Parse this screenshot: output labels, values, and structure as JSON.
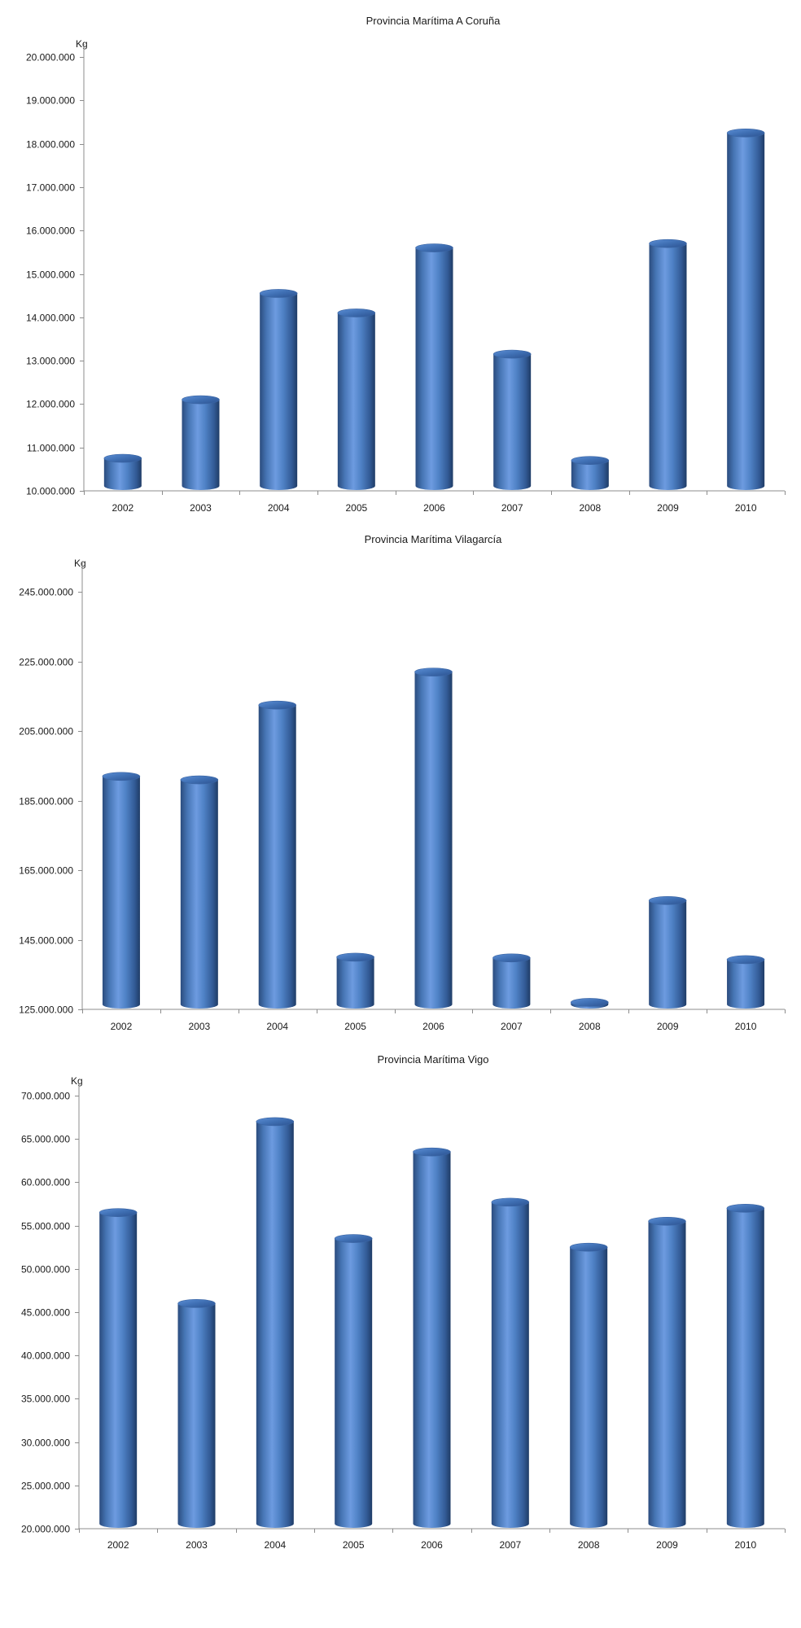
{
  "chart_data": [
    {
      "type": "bar",
      "style": "3d-cylinder",
      "title": "Provincia Marítima  A Coruña",
      "unit": "Kg",
      "xlabel": "",
      "ylabel": "",
      "categories": [
        "2002",
        "2003",
        "2004",
        "2005",
        "2006",
        "2007",
        "2008",
        "2009",
        "2010"
      ],
      "values": [
        10750000,
        12100000,
        14550000,
        14100000,
        15600000,
        13150000,
        10700000,
        15700000,
        18250000
      ],
      "ylim": [
        10000000,
        20000000
      ],
      "ytick_labels": [
        "10.000.000",
        "11.000.000",
        "12.000.000",
        "13.000.000",
        "14.000.000",
        "15.000.000",
        "16.000.000",
        "17.000.000",
        "18.000.000",
        "19.000.000",
        "20.000.000"
      ],
      "grid": false,
      "legend": "none",
      "bar_color": "#4a7ebb"
    },
    {
      "type": "bar",
      "style": "3d-cylinder",
      "title": "Provincia Marítima  Vilagarcía",
      "unit": "Kg",
      "xlabel": "",
      "ylabel": "",
      "categories": [
        "2002",
        "2003",
        "2004",
        "2005",
        "2006",
        "2007",
        "2008",
        "2009",
        "2010"
      ],
      "values": [
        192000000,
        191000000,
        212500000,
        140000000,
        222000000,
        139800000,
        127000000,
        156300000,
        139300000
      ],
      "ylim": [
        125000000,
        250000000
      ],
      "ytick_labels": [
        "125.000.000",
        "145.000.000",
        "165.000.000",
        "185.000.000",
        "205.000.000",
        "225.000.000",
        "245.000.000"
      ],
      "grid": false,
      "legend": "none",
      "bar_color": "#4a7ebb"
    },
    {
      "type": "bar",
      "style": "3d-cylinder",
      "title": "Provincia Marítima  Vigo",
      "unit": "Kg",
      "xlabel": "",
      "ylabel": "",
      "categories": [
        "2002",
        "2003",
        "2004",
        "2005",
        "2006",
        "2007",
        "2008",
        "2009",
        "2010"
      ],
      "values": [
        56500000,
        46000000,
        67000000,
        53500000,
        63500000,
        57700000,
        52500000,
        55500000,
        57000000
      ],
      "ylim": [
        20000000,
        70000000
      ],
      "ytick_labels": [
        "20.000.000",
        "25.000.000",
        "30.000.000",
        "35.000.000",
        "40.000.000",
        "45.000.000",
        "50.000.000",
        "55.000.000",
        "60.000.000",
        "65.000.000",
        "70.000.000"
      ],
      "grid": false,
      "legend": "none",
      "bar_color": "#4a7ebb"
    }
  ]
}
